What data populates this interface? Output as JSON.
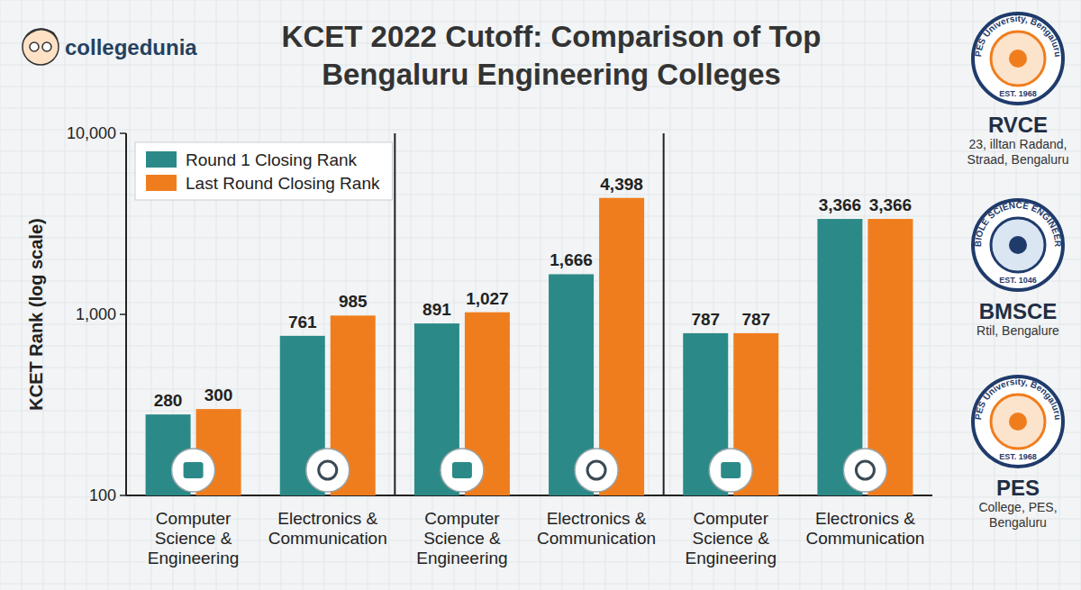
{
  "brand": "collegedunia",
  "chart_data": {
    "type": "bar",
    "title": "KCET 2022 Cutoff: Comparison of Top Bengaluru Engineering Colleges",
    "y_label": "KCET Rank (log scale)",
    "categories": [
      "Computer Science & Engineering",
      "Electronics & Communication",
      "Computer Science & Engineering",
      "Electronics & Communication",
      "Computer Science & Engineering",
      "Electronics & Communication"
    ],
    "series": [
      {
        "name": "Round 1 Closing Rank",
        "color": "#2b8a87",
        "values": [
          280,
          761,
          891,
          1666,
          787,
          3366
        ],
        "value_labels": [
          "280",
          "761",
          "891",
          "1,666",
          "787",
          "3,366"
        ]
      },
      {
        "name": "Last Round Closing Rank",
        "color": "#f07d1d",
        "values": [
          300,
          985,
          1027,
          4398,
          787,
          3366
        ],
        "value_labels": [
          "300",
          "985",
          "1,027",
          "4,398",
          "787",
          "3,366"
        ]
      }
    ],
    "ylim": [
      100,
      10000
    ],
    "yticks": [
      100,
      {
        "value": 1000,
        "label": "1,000"
      },
      {
        "value": 10000,
        "label": "10,000"
      }
    ],
    "log": "y",
    "grid": false,
    "legend": "upper left",
    "data_labels": true
  },
  "colleges": [
    {
      "name": "RVCE",
      "address": "23, illtan Radand, Straad, Bengaluru",
      "logo_text": "PES University, Bengaluru",
      "logo_est": "EST. 1968"
    },
    {
      "name": "BMSCE",
      "address": "Rtil, Bengalure",
      "logo_text": "BIOLE SCIENCE ENGINEER",
      "logo_est": "EST. 1046"
    },
    {
      "name": "PES",
      "address": "College, PES, Bengaluru",
      "logo_text": "PES University, Bengaluru",
      "logo_est": "EST. 1968"
    }
  ]
}
